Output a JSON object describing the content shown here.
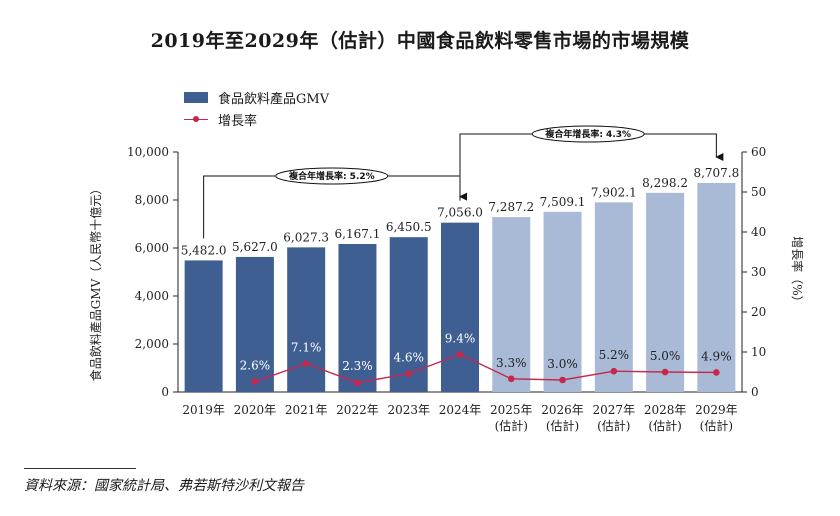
{
  "title": "2019年至2029年（估計）中國食品飲料零售市場的市場規模",
  "legend": {
    "gmv": "食品飲料產品GMV",
    "growth": "增長率"
  },
  "colors": {
    "actual_bar": "#3f5f93",
    "forecast_bar": "#a9bad6",
    "growth_line": "#c8264a"
  },
  "chart_data": {
    "type": "bar",
    "categories": [
      "2019年",
      "2020年",
      "2021年",
      "2022年",
      "2023年",
      "2024年",
      "2025年\n(估計)",
      "2026年\n(估計)",
      "2027年\n(估計)",
      "2028年\n(估計)",
      "2029年\n(估計)"
    ],
    "series": [
      {
        "name": "食品飲料產品GMV",
        "type": "bar",
        "axis": "left",
        "values": [
          5482.0,
          5627.0,
          6027.3,
          6167.1,
          6450.5,
          7056.0,
          7287.2,
          7509.1,
          7902.1,
          8298.2,
          8707.8
        ],
        "labels": [
          "5,482.0",
          "5,627.0",
          "6,027.3",
          "6,167.1",
          "6,450.5",
          "7,056.0",
          "7,287.2",
          "7,509.1",
          "7,902.1",
          "8,298.2",
          "8,707.8"
        ],
        "forecast_from_index": 6
      },
      {
        "name": "增長率",
        "type": "line",
        "axis": "right",
        "values": [
          null,
          2.6,
          7.1,
          2.3,
          4.6,
          9.4,
          3.3,
          3.0,
          5.2,
          5.0,
          4.9
        ],
        "labels": [
          "",
          "2.6%",
          "7.1%",
          "2.3%",
          "4.6%",
          "9.4%",
          "3.3%",
          "3.0%",
          "5.2%",
          "5.0%",
          "4.9%"
        ]
      }
    ],
    "ylabel_left": "食品飲料產品GMV（人民幣十億元）",
    "ylabel_right": "增長率（%）",
    "ylim_left": [
      0,
      10000
    ],
    "yticks_left": [
      "0",
      "2,000",
      "4,000",
      "6,000",
      "8,000",
      "10,000"
    ],
    "ylim_right": [
      0,
      60
    ],
    "yticks_right": [
      "0",
      "10",
      "20",
      "30",
      "40",
      "50",
      "60"
    ],
    "annotations": [
      {
        "text": "複合年增長率: 5.2%",
        "from_index": 0,
        "to_index": 5
      },
      {
        "text": "複合年增長率: 4.3%",
        "from_index": 5,
        "to_index": 10
      }
    ]
  },
  "source": "資料來源：國家統計局、弗若斯特沙利文報告"
}
